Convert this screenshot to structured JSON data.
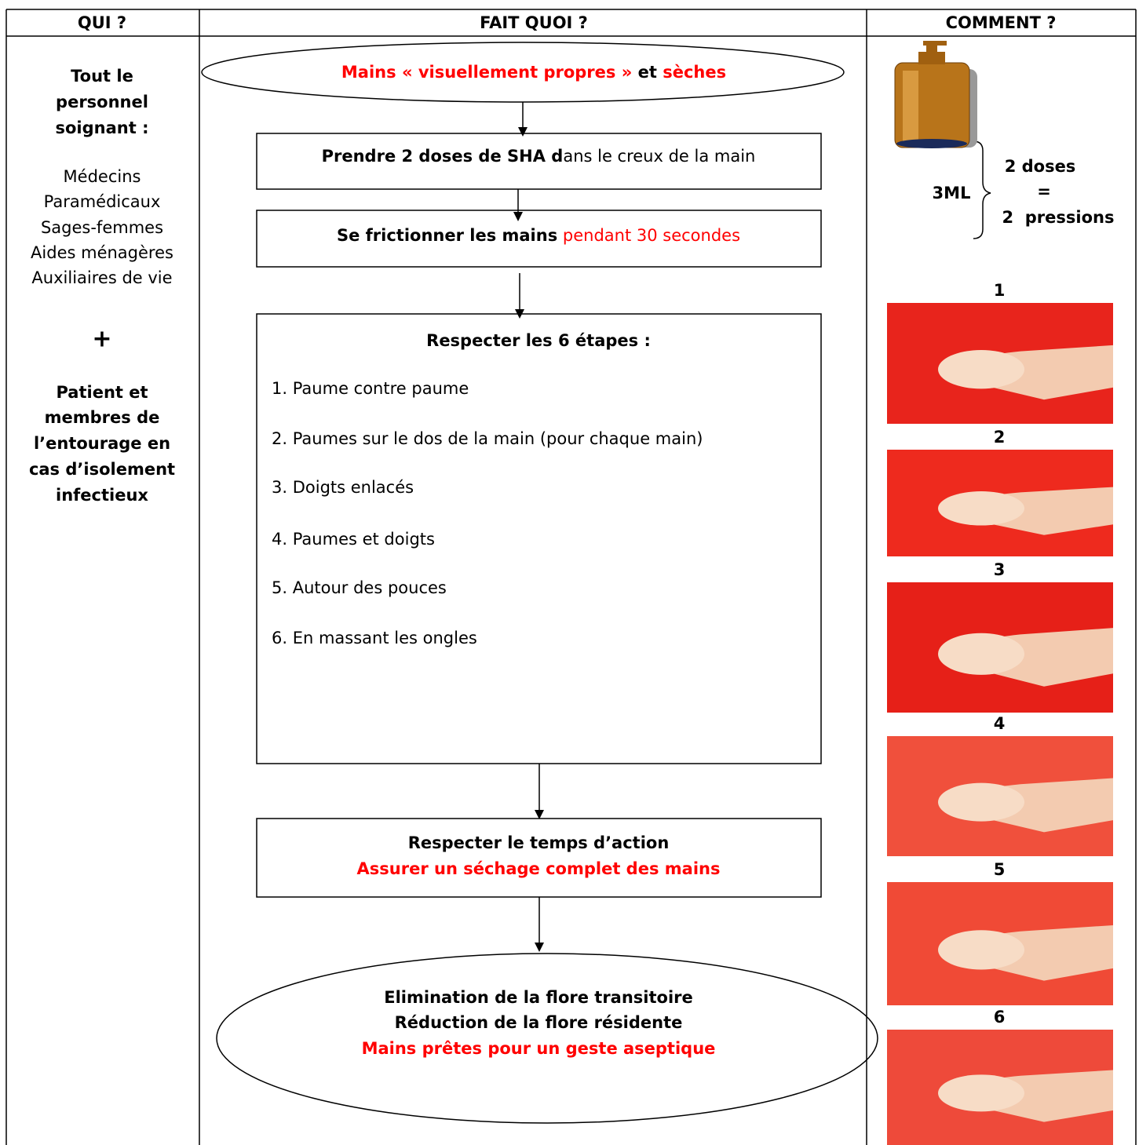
{
  "header": [
    "QUI ?",
    "FAIT QUOI ?",
    "COMMENT ?"
  ],
  "qui": {
    "staff_title": [
      "Tout le",
      "personnel",
      "soignant :"
    ],
    "roles": [
      "Médecins",
      "Paramédicaux",
      "Sages-femmes",
      "Aides ménagères",
      "Auxiliaires de vie"
    ],
    "plus": "+",
    "patient": [
      "Patient et",
      "membres de",
      "l’entourage en",
      "cas d’isolement",
      "infectieux"
    ]
  },
  "flow": {
    "start": [
      "Mains « visuellement propres »",
      "et",
      "sèches"
    ],
    "step1": [
      "Prendre 2 doses de SHA d",
      "ans le creux de la main"
    ],
    "step2": [
      "Se frictionner les mains",
      "pendant 30 secondes"
    ],
    "step3": {
      "title": "Respecter les 6 étapes :",
      "items": [
        "1. Paume contre paume",
        "2. Paumes sur le dos de la main (pour chaque main)",
        "3. Doigts enlacés",
        "4. Paumes et doigts",
        "5. Autour des pouces",
        "6. En massant les ongles"
      ]
    },
    "step4": [
      "Respecter le temps d’action",
      "Assurer un séchage complet des mains"
    ],
    "end": [
      "Elimination de la flore transitoire",
      "Réduction de la flore résidente",
      "Mains prêtes pour un geste aseptique"
    ]
  },
  "comment": {
    "volume": "3ML",
    "doses": [
      "2 doses",
      "=",
      "2  pressions"
    ],
    "photo_labels": [
      "1",
      "2",
      "3",
      "4",
      "5",
      "6"
    ]
  }
}
